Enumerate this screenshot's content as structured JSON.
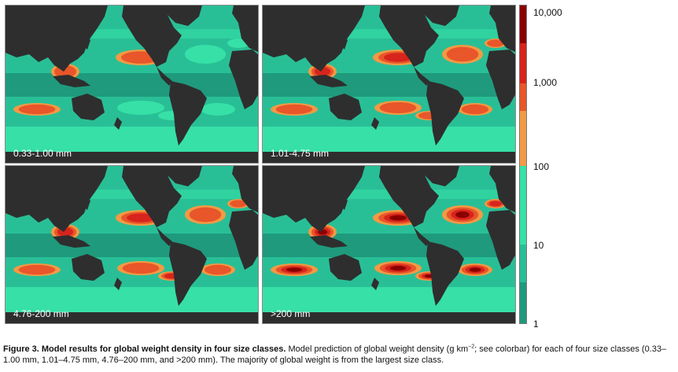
{
  "panels": [
    {
      "label": "0.33-1.00 mm"
    },
    {
      "label": "1.01-4.75 mm"
    },
    {
      "label": "4.76-200 mm"
    },
    {
      "label": ">200 mm"
    }
  ],
  "colorbar": {
    "ticks": [
      "10,000",
      "1,000",
      "100",
      "10",
      "1"
    ],
    "colors": [
      "#8b0000",
      "#d7241c",
      "#e8562a",
      "#f19a45",
      "#36e0a6",
      "#29bf96",
      "#1f9a7d"
    ]
  },
  "map_colors": {
    "land": "#2e2e2e",
    "ocean_low": "#1f9a7d",
    "ocean_mid": "#29bf96",
    "ocean_high": "#36e0a6",
    "orange": "#f19a45",
    "red_orange": "#e8562a",
    "red": "#d7241c",
    "dark_red": "#8b0000"
  },
  "caption": {
    "bold": "Figure 3. Model results for global weight density in four size classes.",
    "text_a": " Model prediction of global weight density (g km",
    "exponent": "−2",
    "text_b": "; see colorbar) for each of four size classes (0.33–1.00 mm, 1.01–4.75 mm, 4.76–200 mm, and >200 mm). The majority of global weight is from the largest size class."
  }
}
